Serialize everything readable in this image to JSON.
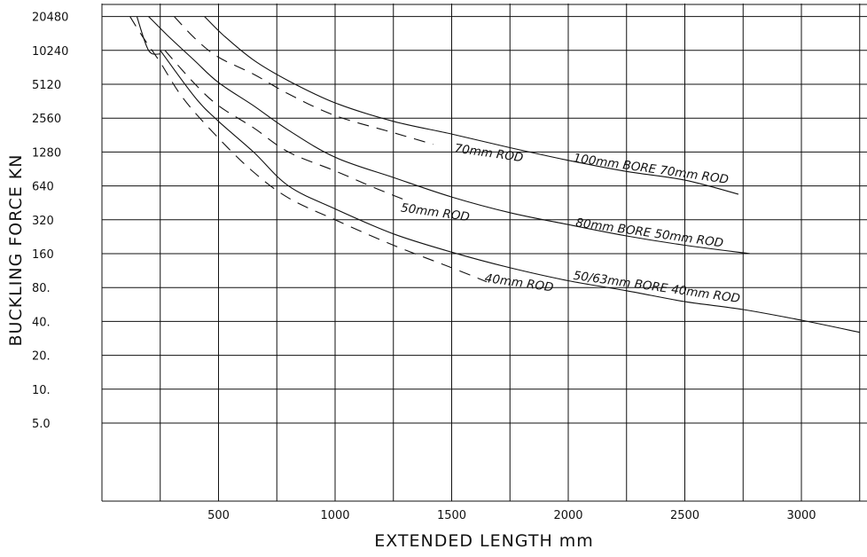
{
  "chart_data": {
    "type": "line",
    "title": "",
    "xlabel": "EXTENDED LENGTH mm",
    "ylabel": "BUCKLING FORCE KN",
    "xlim": [
      0,
      3250
    ],
    "y_scale": "log2",
    "x_ticks": [
      500,
      1000,
      1500,
      2000,
      2500,
      3000
    ],
    "x_tick_labels": [
      "500",
      "1000",
      "1500",
      "2000",
      "2500",
      "3000"
    ],
    "y_ticks": [
      5,
      10,
      20,
      40,
      80,
      160,
      320,
      640,
      1280,
      2560,
      5120,
      10240,
      20480
    ],
    "y_tick_labels": [
      "5.0",
      "10.",
      "20.",
      "40.",
      "80.",
      "160",
      "320",
      "640",
      "1280",
      "2560",
      "5120",
      "10240",
      "20480"
    ],
    "grid": true,
    "series": [
      {
        "name": "100mm BORE 70mm ROD",
        "style": "solid",
        "points": [
          [
            440,
            20480
          ],
          [
            520,
            14000
          ],
          [
            650,
            8400
          ],
          [
            800,
            5500
          ],
          [
            1000,
            3500
          ],
          [
            1250,
            2400
          ],
          [
            1500,
            1850
          ],
          [
            1750,
            1400
          ],
          [
            2000,
            1080
          ],
          [
            2250,
            860
          ],
          [
            2500,
            720
          ],
          [
            2730,
            540
          ]
        ]
      },
      {
        "name": "70mm ROD",
        "style": "dashed",
        "points": [
          [
            310,
            20480
          ],
          [
            400,
            13000
          ],
          [
            500,
            8900
          ],
          [
            650,
            6300
          ],
          [
            800,
            4200
          ],
          [
            1000,
            2700
          ],
          [
            1250,
            1900
          ],
          [
            1420,
            1500
          ]
        ]
      },
      {
        "name": "80mm BORE 50mm ROD",
        "style": "solid",
        "points": [
          [
            200,
            20480
          ],
          [
            280,
            14000
          ],
          [
            400,
            8200
          ],
          [
            500,
            5300
          ],
          [
            650,
            3300
          ],
          [
            800,
            2000
          ],
          [
            1000,
            1150
          ],
          [
            1250,
            760
          ],
          [
            1500,
            510
          ],
          [
            1750,
            370
          ],
          [
            2000,
            290
          ],
          [
            2250,
            230
          ],
          [
            2500,
            190
          ],
          [
            2780,
            160
          ]
        ]
      },
      {
        "name": "50mm ROD",
        "style": "dashed",
        "points": [
          [
            270,
            10240
          ],
          [
            400,
            5120
          ],
          [
            500,
            3300
          ],
          [
            650,
            2100
          ],
          [
            800,
            1280
          ],
          [
            1000,
            870
          ],
          [
            1150,
            640
          ],
          [
            1300,
            480
          ]
        ]
      },
      {
        "name": "50/63mm BORE 40mm ROD",
        "style": "solid",
        "points": [
          [
            250,
            10240
          ],
          [
            400,
            3900
          ],
          [
            500,
            2400
          ],
          [
            650,
            1280
          ],
          [
            800,
            640
          ],
          [
            1000,
            400
          ],
          [
            1250,
            240
          ],
          [
            1500,
            165
          ],
          [
            1750,
            120
          ],
          [
            2000,
            92
          ],
          [
            2250,
            75
          ],
          [
            2500,
            60
          ],
          [
            2750,
            51
          ],
          [
            3000,
            41
          ],
          [
            3250,
            32
          ]
        ]
      },
      {
        "name": "40mm ROD",
        "style": "dashed",
        "points": [
          [
            120,
            20480
          ],
          [
            170,
            14000
          ],
          [
            250,
            8000
          ],
          [
            350,
            3800
          ],
          [
            500,
            1700
          ],
          [
            650,
            850
          ],
          [
            800,
            500
          ],
          [
            1000,
            320
          ],
          [
            1250,
            190
          ],
          [
            1500,
            120
          ],
          [
            1650,
            90
          ]
        ]
      },
      {
        "name": "",
        "style": "solid",
        "points": [
          [
            150,
            20480
          ],
          [
            200,
            10240
          ],
          [
            250,
            9500
          ]
        ]
      }
    ],
    "annotations": [
      {
        "text": "70mm ROD",
        "x": 1510,
        "y": 1280
      },
      {
        "text": "100mm BORE 70mm ROD",
        "x": 2020,
        "y": 1050
      },
      {
        "text": "50mm ROD",
        "x": 1280,
        "y": 380
      },
      {
        "text": "80mm BORE 50mm ROD",
        "x": 2030,
        "y": 280
      },
      {
        "text": "50/63mm BORE 40mm ROD",
        "x": 2020,
        "y": 95
      },
      {
        "text": "40mm ROD",
        "x": 1640,
        "y": 90
      }
    ]
  }
}
